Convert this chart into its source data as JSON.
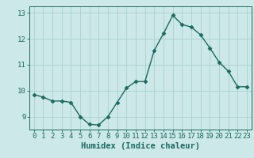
{
  "x": [
    0,
    1,
    2,
    3,
    4,
    5,
    6,
    7,
    8,
    9,
    10,
    11,
    12,
    13,
    14,
    15,
    16,
    17,
    18,
    19,
    20,
    21,
    22,
    23
  ],
  "y": [
    9.85,
    9.75,
    9.6,
    9.6,
    9.55,
    9.0,
    8.7,
    8.68,
    9.0,
    9.55,
    10.1,
    10.35,
    10.35,
    11.55,
    12.2,
    12.9,
    12.55,
    12.45,
    12.15,
    11.65,
    11.1,
    10.75,
    10.15,
    10.15
  ],
  "line_color": "#1a6b5e",
  "marker": "D",
  "marker_size": 2.5,
  "bg_color": "#cce8e8",
  "grid_color": "#aacfcf",
  "xlabel": "Humidex (Indice chaleur)",
  "ylim": [
    8.5,
    13.25
  ],
  "xlim": [
    -0.5,
    23.5
  ],
  "yticks": [
    9,
    10,
    11,
    12,
    13
  ],
  "xticks": [
    0,
    1,
    2,
    3,
    4,
    5,
    6,
    7,
    8,
    9,
    10,
    11,
    12,
    13,
    14,
    15,
    16,
    17,
    18,
    19,
    20,
    21,
    22,
    23
  ],
  "tick_color": "#1a6b5e",
  "xlabel_fontsize": 7.5,
  "tick_fontsize": 6.5,
  "linewidth": 1.0
}
